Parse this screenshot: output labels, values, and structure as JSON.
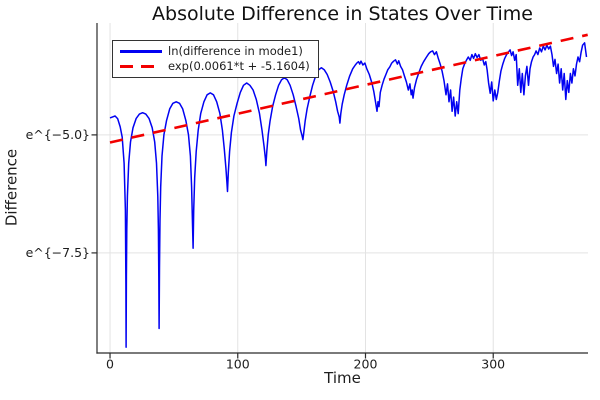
{
  "title": "Absolute Difference in States Over Time",
  "axes": {
    "x_label": "Time",
    "y_label": "Difference"
  },
  "legend": {
    "position": "top-left",
    "entries": [
      {
        "label": "ln(difference in mode1)",
        "color": "#0202f2",
        "style": "solid"
      },
      {
        "label": "exp(0.0061*t + -5.1604)",
        "color": "#f20000",
        "style": "dashed"
      }
    ]
  },
  "colors": {
    "background": "#ffffff",
    "grid": "#e3e3e3",
    "axis": "#2b2b2b",
    "text": "#1e1e1e"
  },
  "chart_data": {
    "type": "line",
    "title": "Absolute Difference in States Over Time",
    "xlabel": "Time",
    "ylabel": "Difference",
    "y_scale_note": "y axis is natural-log scaled; point values are ln(difference)",
    "grid": true,
    "legend_position": "top-left",
    "xlim": [
      -10.2,
      374.2
    ],
    "ylim": [
      -9.62,
      -2.63
    ],
    "x_ticks": [
      {
        "v": 0,
        "label": "0"
      },
      {
        "v": 100,
        "label": "100"
      },
      {
        "v": 200,
        "label": "200"
      },
      {
        "v": 300,
        "label": "300"
      }
    ],
    "y_ticks": [
      {
        "v": -5.0,
        "label": "e^{−5.0}"
      },
      {
        "v": -7.5,
        "label": "e^{−7.5}"
      }
    ],
    "series": [
      {
        "name": "ln(difference in mode1)",
        "color": "#0202f2",
        "style": "solid",
        "width": 1.5,
        "points": [
          [
            0,
            -4.64
          ],
          [
            2,
            -4.62
          ],
          [
            4,
            -4.6
          ],
          [
            6,
            -4.66
          ],
          [
            8,
            -4.83
          ],
          [
            9.5,
            -5.05
          ],
          [
            11,
            -5.6
          ],
          [
            12,
            -6.6
          ],
          [
            12.4,
            -8.2
          ],
          [
            12.6,
            -9.5
          ],
          [
            12.8,
            -8.0
          ],
          [
            13.1,
            -7.0
          ],
          [
            13.6,
            -6.3
          ],
          [
            14.6,
            -5.6
          ],
          [
            16,
            -5.15
          ],
          [
            18,
            -4.85
          ],
          [
            20.5,
            -4.65
          ],
          [
            23,
            -4.56
          ],
          [
            25.5,
            -4.53
          ],
          [
            28,
            -4.56
          ],
          [
            30.5,
            -4.65
          ],
          [
            33,
            -4.85
          ],
          [
            35,
            -5.15
          ],
          [
            36.4,
            -5.6
          ],
          [
            37.4,
            -6.3
          ],
          [
            37.9,
            -7.0
          ],
          [
            38.2,
            -8.0
          ],
          [
            38.4,
            -9.1
          ],
          [
            38.7,
            -7.8
          ],
          [
            39.1,
            -6.8
          ],
          [
            39.7,
            -6.1
          ],
          [
            40.7,
            -5.45
          ],
          [
            42.2,
            -5.0
          ],
          [
            44.2,
            -4.7
          ],
          [
            46.7,
            -4.45
          ],
          [
            49.2,
            -4.33
          ],
          [
            51.8,
            -4.3
          ],
          [
            54.4,
            -4.33
          ],
          [
            56.9,
            -4.45
          ],
          [
            59.4,
            -4.7
          ],
          [
            61.4,
            -5.0
          ],
          [
            62.9,
            -5.45
          ],
          [
            63.9,
            -6.1
          ],
          [
            64.5,
            -6.8
          ],
          [
            65,
            -7.4
          ],
          [
            65.5,
            -6.6
          ],
          [
            66.3,
            -5.9
          ],
          [
            67.5,
            -5.35
          ],
          [
            69,
            -4.9
          ],
          [
            71,
            -4.55
          ],
          [
            73.5,
            -4.3
          ],
          [
            76,
            -4.15
          ],
          [
            78.5,
            -4.11
          ],
          [
            81,
            -4.15
          ],
          [
            83.5,
            -4.3
          ],
          [
            86,
            -4.55
          ],
          [
            88,
            -4.9
          ],
          [
            89.5,
            -5.3
          ],
          [
            90.7,
            -5.7
          ],
          [
            91.5,
            -6.0
          ],
          [
            92,
            -6.2
          ],
          [
            92.6,
            -5.8
          ],
          [
            93.6,
            -5.35
          ],
          [
            95,
            -4.95
          ],
          [
            97,
            -4.6
          ],
          [
            99.5,
            -4.33
          ],
          [
            102,
            -4.1
          ],
          [
            104.5,
            -3.95
          ],
          [
            107,
            -3.9
          ],
          [
            109.5,
            -3.95
          ],
          [
            112,
            -4.05
          ],
          [
            114.5,
            -4.25
          ],
          [
            117,
            -4.55
          ],
          [
            119,
            -4.9
          ],
          [
            120.6,
            -5.25
          ],
          [
            121.6,
            -5.5
          ],
          [
            122,
            -5.65
          ],
          [
            122.7,
            -5.35
          ],
          [
            123.8,
            -5.0
          ],
          [
            125.3,
            -4.7
          ],
          [
            127.3,
            -4.4
          ],
          [
            129.6,
            -4.15
          ],
          [
            132,
            -3.95
          ],
          [
            134.3,
            -3.83
          ],
          [
            136.5,
            -3.79
          ],
          [
            138.7,
            -3.83
          ],
          [
            141,
            -3.95
          ],
          [
            143.4,
            -4.15
          ],
          [
            145.7,
            -4.4
          ],
          [
            147.7,
            -4.65
          ],
          [
            149.2,
            -4.9
          ],
          [
            150.4,
            -5.02
          ],
          [
            151,
            -5.1
          ],
          [
            151.7,
            -4.95
          ],
          [
            152.8,
            -4.7
          ],
          [
            154.3,
            -4.45
          ],
          [
            156.3,
            -4.2
          ],
          [
            158.6,
            -3.95
          ],
          [
            161,
            -3.75
          ],
          [
            163.3,
            -3.62
          ],
          [
            165.5,
            -3.58
          ],
          [
            167.7,
            -3.62
          ],
          [
            170,
            -3.72
          ],
          [
            172.4,
            -3.88
          ],
          [
            174.7,
            -4.08
          ],
          [
            176.7,
            -4.3
          ],
          [
            178.2,
            -4.5
          ],
          [
            179.4,
            -4.62
          ],
          [
            180,
            -4.75
          ],
          [
            180.7,
            -4.55
          ],
          [
            181.8,
            -4.35
          ],
          [
            183.3,
            -4.15
          ],
          [
            185.3,
            -3.95
          ],
          [
            187.6,
            -3.75
          ],
          [
            190,
            -3.6
          ],
          [
            192,
            -3.52
          ],
          [
            193.5,
            -3.47
          ],
          [
            194.5,
            -3.45
          ],
          [
            195.5,
            -3.5
          ],
          [
            196.5,
            -3.44
          ],
          [
            198,
            -3.52
          ],
          [
            199.5,
            -3.48
          ],
          [
            201,
            -3.6
          ],
          [
            203,
            -3.72
          ],
          [
            205,
            -3.9
          ],
          [
            206.5,
            -4.08
          ],
          [
            207.8,
            -4.3
          ],
          [
            209,
            -4.5
          ],
          [
            209.8,
            -4.3
          ],
          [
            210.6,
            -4.4
          ],
          [
            211.6,
            -4.1
          ],
          [
            213,
            -3.95
          ],
          [
            214.5,
            -3.82
          ],
          [
            216,
            -3.72
          ],
          [
            217.5,
            -3.62
          ],
          [
            219,
            -3.56
          ],
          [
            220.5,
            -3.48
          ],
          [
            222,
            -3.44
          ],
          [
            223.5,
            -3.41
          ],
          [
            225,
            -3.5
          ],
          [
            226,
            -3.43
          ],
          [
            227.5,
            -3.55
          ],
          [
            229,
            -3.62
          ],
          [
            230.5,
            -3.75
          ],
          [
            232,
            -3.88
          ],
          [
            233.5,
            -4.05
          ],
          [
            234.8,
            -3.92
          ],
          [
            235.8,
            -4.15
          ],
          [
            236.6,
            -4.05
          ],
          [
            237.2,
            -4.22
          ],
          [
            238.4,
            -4.0
          ],
          [
            240,
            -3.82
          ],
          [
            241.8,
            -3.68
          ],
          [
            243.6,
            -3.55
          ],
          [
            245.5,
            -3.45
          ],
          [
            247.5,
            -3.36
          ],
          [
            249.5,
            -3.28
          ],
          [
            251,
            -3.24
          ],
          [
            252.5,
            -3.22
          ],
          [
            254,
            -3.3
          ],
          [
            255.5,
            -3.24
          ],
          [
            257,
            -3.38
          ],
          [
            258.5,
            -3.5
          ],
          [
            260,
            -3.65
          ],
          [
            261.5,
            -3.85
          ],
          [
            263,
            -4.15
          ],
          [
            264.2,
            -3.92
          ],
          [
            265.4,
            -4.3
          ],
          [
            266.6,
            -4.05
          ],
          [
            267.8,
            -4.5
          ],
          [
            269,
            -4.2
          ],
          [
            270.2,
            -4.6
          ],
          [
            271.4,
            -4.3
          ],
          [
            272.6,
            -4.55
          ],
          [
            273.8,
            -4.05
          ],
          [
            275,
            -3.8
          ],
          [
            276.2,
            -3.6
          ],
          [
            277.5,
            -3.5
          ],
          [
            279,
            -3.42
          ],
          [
            280.5,
            -3.35
          ],
          [
            282,
            -3.42
          ],
          [
            283.3,
            -3.3
          ],
          [
            284.6,
            -3.38
          ],
          [
            286,
            -3.28
          ],
          [
            287.4,
            -3.36
          ],
          [
            288.8,
            -3.3
          ],
          [
            290.2,
            -3.42
          ],
          [
            291.6,
            -3.38
          ],
          [
            293,
            -3.52
          ],
          [
            294.2,
            -3.45
          ],
          [
            295.2,
            -3.62
          ],
          [
            296.4,
            -3.9
          ],
          [
            297.6,
            -4.12
          ],
          [
            298.8,
            -3.88
          ],
          [
            300,
            -4.28
          ],
          [
            301.2,
            -4.05
          ],
          [
            302.4,
            -4.25
          ],
          [
            303.6,
            -4.1
          ],
          [
            304.8,
            -3.85
          ],
          [
            306,
            -3.65
          ],
          [
            307.5,
            -3.5
          ],
          [
            309,
            -3.38
          ],
          [
            310.5,
            -3.3
          ],
          [
            312,
            -3.24
          ],
          [
            313.2,
            -3.2
          ],
          [
            314.4,
            -3.32
          ],
          [
            315.6,
            -3.24
          ],
          [
            316.8,
            -3.42
          ],
          [
            318,
            -3.3
          ],
          [
            319.2,
            -3.95
          ],
          [
            320.4,
            -3.6
          ],
          [
            321.6,
            -4.1
          ],
          [
            322.8,
            -3.7
          ],
          [
            324,
            -4.15
          ],
          [
            325.2,
            -3.75
          ],
          [
            326.4,
            -3.55
          ],
          [
            327.6,
            -3.95
          ],
          [
            328.8,
            -3.6
          ],
          [
            330,
            -3.45
          ],
          [
            331.2,
            -3.35
          ],
          [
            332.4,
            -3.3
          ],
          [
            333.6,
            -3.22
          ],
          [
            335,
            -3.3
          ],
          [
            336.4,
            -3.16
          ],
          [
            337.8,
            -3.24
          ],
          [
            339.2,
            -3.12
          ],
          [
            340.6,
            -3.2
          ],
          [
            342,
            -3.1
          ],
          [
            343.4,
            -3.18
          ],
          [
            344.8,
            -3.12
          ],
          [
            346,
            -3.3
          ],
          [
            347.2,
            -3.55
          ],
          [
            348.4,
            -3.4
          ],
          [
            349.6,
            -3.7
          ],
          [
            350.8,
            -3.5
          ],
          [
            352,
            -3.9
          ],
          [
            353.2,
            -3.6
          ],
          [
            354.4,
            -4.05
          ],
          [
            355.6,
            -3.7
          ],
          [
            356.8,
            -4.25
          ],
          [
            358,
            -3.85
          ],
          [
            359.2,
            -4.1
          ],
          [
            360.4,
            -3.7
          ],
          [
            361.6,
            -3.9
          ],
          [
            362.8,
            -3.6
          ],
          [
            364,
            -3.75
          ],
          [
            365.2,
            -3.5
          ],
          [
            366.4,
            -3.35
          ],
          [
            367.6,
            -3.45
          ],
          [
            368.8,
            -3.25
          ],
          [
            370,
            -3.1
          ],
          [
            371.5,
            -3.05
          ],
          [
            373,
            -3.35
          ]
        ]
      },
      {
        "name": "exp(0.0061*t + -5.1604)",
        "color": "#f20000",
        "style": "dashed",
        "width": 2.6,
        "points": [
          [
            0,
            -5.1604
          ],
          [
            374,
            -2.879
          ]
        ]
      }
    ]
  }
}
